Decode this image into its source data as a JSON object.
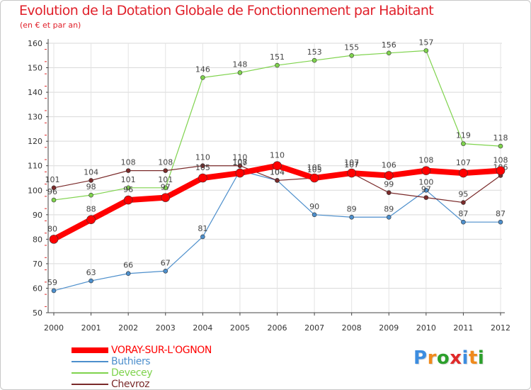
{
  "chart_data": {
    "type": "line",
    "title": "Evolution de la Dotation Globale de Fonctionnement par Habitant",
    "subtitle": "(en € et par an)",
    "xlabel": "",
    "ylabel": "",
    "categories": [
      "2000",
      "2001",
      "2002",
      "2003",
      "2004",
      "2005",
      "2006",
      "2007",
      "2008",
      "2009",
      "2010",
      "2011",
      "2012"
    ],
    "ylim": [
      50,
      160
    ],
    "yticks": [
      50,
      60,
      70,
      80,
      90,
      100,
      110,
      120,
      130,
      140,
      150,
      160
    ],
    "grid": true,
    "legend_position": "bottom-left",
    "series": [
      {
        "name": "VORAY-SUR-L'OGNON",
        "color": "#ff0000",
        "values": [
          80,
          88,
          96,
          97,
          105,
          107,
          110,
          105,
          107,
          106,
          108,
          107,
          108
        ]
      },
      {
        "name": "Buthiers",
        "color": "#4d8fcc",
        "values": [
          59,
          63,
          66,
          67,
          81,
          108,
          104,
          90,
          89,
          89,
          100,
          87,
          87
        ]
      },
      {
        "name": "Devecey",
        "color": "#7fd34d",
        "values": [
          96,
          98,
          101,
          101,
          146,
          148,
          151,
          153,
          155,
          156,
          157,
          119,
          118
        ]
      },
      {
        "name": "Chevroz",
        "color": "#7a2a2a",
        "values": [
          101,
          104,
          108,
          108,
          110,
          110,
          104,
          105,
          107,
          99,
          97,
          95,
          106
        ]
      }
    ]
  },
  "logo": {
    "letters": [
      "P",
      "r",
      "o",
      "x",
      "i",
      "t",
      "i"
    ],
    "colors": [
      "#3c8de0",
      "#f08a1c",
      "#2ca02c",
      "#e02a2a",
      "#3c8de0",
      "#f08a1c",
      "#2ca02c"
    ]
  }
}
